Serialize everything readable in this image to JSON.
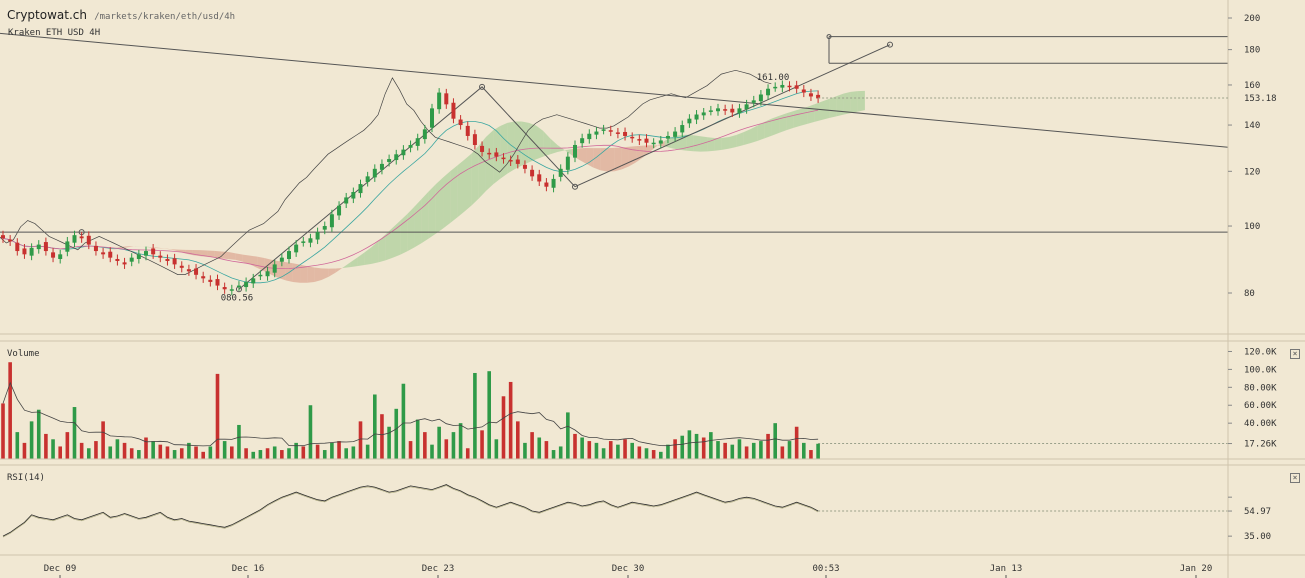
{
  "header": {
    "site": "Cryptowat.ch",
    "path": "/markets/kraken/eth/usd/4h",
    "market": "Kraken ETH USD 4H"
  },
  "panes": {
    "volume_label": "Volume",
    "rsi_label": "RSI(14)"
  },
  "colors": {
    "background": "#f1e8d3",
    "up": "#2f9a48",
    "down": "#c8312f",
    "cloud_up": "#9ec98f",
    "cloud_down": "#d99a85",
    "line": "#444444"
  },
  "icons": {
    "close": "close-icon"
  },
  "chart_data": [
    {
      "type": "candlestick",
      "title": "Kraken ETH USD 4H",
      "y_scale": "log",
      "ylim": [
        70,
        210
      ],
      "y_ticks": [
        "200",
        "180",
        "160",
        "140",
        "120",
        "100",
        "80"
      ],
      "last_price": "153.18",
      "annotations": [
        "161.00",
        "080.56"
      ],
      "x_ticks": [
        "Dec 09",
        "Dec 16",
        "Dec 23",
        "Dec 30",
        "00:53",
        "Jan 13",
        "Jan 20"
      ],
      "horizontal_levels": [
        98
      ],
      "close": [
        96,
        95,
        92,
        91,
        93,
        94,
        92,
        90,
        91,
        95,
        97,
        96,
        94,
        92,
        91,
        90,
        89,
        88,
        90,
        91,
        92,
        91,
        90,
        89,
        88,
        87,
        86,
        85,
        84,
        83,
        82,
        81,
        81,
        82,
        83,
        84,
        85,
        86,
        88,
        90,
        92,
        94,
        95,
        96,
        98,
        100,
        104,
        107,
        110,
        112,
        115,
        118,
        121,
        123,
        125,
        127,
        129,
        131,
        134,
        138,
        148,
        156,
        150,
        143,
        140,
        135,
        131,
        128,
        127,
        126,
        125,
        124,
        123,
        121,
        118,
        116,
        114,
        117,
        121,
        126,
        131,
        134,
        136,
        137,
        138,
        137,
        136,
        135,
        134,
        133,
        132,
        132,
        133,
        135,
        137,
        140,
        143,
        145,
        146,
        147,
        148,
        147,
        146,
        148,
        150,
        152,
        155,
        158,
        159,
        160,
        159,
        158,
        156,
        154,
        153
      ]
    },
    {
      "type": "bar",
      "title": "Volume",
      "y_ticks": [
        "120.0K",
        "100.0K",
        "80.00K",
        "60.00K",
        "40.00K",
        "17.26K"
      ],
      "last_value": "17.26K",
      "values": [
        62,
        108,
        30,
        18,
        42,
        55,
        28,
        22,
        14,
        30,
        58,
        18,
        12,
        20,
        42,
        14,
        22,
        18,
        12,
        10,
        24,
        20,
        16,
        14,
        10,
        12,
        18,
        14,
        8,
        14,
        95,
        20,
        14,
        38,
        12,
        8,
        10,
        12,
        14,
        10,
        12,
        18,
        14,
        60,
        16,
        10,
        18,
        20,
        12,
        14,
        42,
        16,
        72,
        50,
        36,
        56,
        84,
        20,
        44,
        30,
        16,
        36,
        22,
        30,
        40,
        12,
        96,
        32,
        98,
        22,
        70,
        86,
        42,
        18,
        30,
        24,
        20,
        10,
        14,
        52,
        28,
        24,
        20,
        18,
        12,
        20,
        16,
        22,
        18,
        14,
        12,
        10,
        8,
        16,
        22,
        26,
        32,
        28,
        24,
        30,
        20,
        18,
        16,
        22,
        14,
        18,
        20,
        28,
        40,
        14,
        20,
        36,
        18,
        10,
        17
      ],
      "up": [
        false,
        false,
        true,
        false,
        true,
        true,
        false,
        true,
        false,
        false,
        true,
        false,
        true,
        false,
        false,
        true,
        true,
        false,
        false,
        true,
        false,
        true,
        false,
        false,
        true,
        false,
        true,
        false,
        false,
        true,
        false,
        true,
        false,
        true,
        false,
        true,
        true,
        false,
        true,
        false,
        true,
        true,
        false,
        true,
        false,
        true,
        true,
        false,
        true,
        true,
        false,
        true,
        true,
        false,
        true,
        true,
        true,
        false,
        true,
        false,
        true,
        true,
        false,
        true,
        true,
        false,
        true,
        false,
        true,
        true,
        false,
        false,
        false,
        true,
        false,
        true,
        false,
        true,
        true,
        true,
        false,
        true,
        false,
        true,
        true,
        false,
        true,
        false,
        true,
        false,
        true,
        false,
        true,
        true,
        false,
        true,
        true,
        true,
        false,
        true,
        true,
        false,
        true,
        true,
        false,
        true,
        true,
        false,
        true,
        false,
        true,
        false,
        true,
        false,
        true
      ]
    },
    {
      "type": "line",
      "title": "RSI(14)",
      "ylim": [
        20,
        90
      ],
      "y_ticks": [
        "54.97",
        "35.00"
      ],
      "last_value": "54.97",
      "values": [
        35,
        38,
        42,
        46,
        52,
        50,
        49,
        48,
        50,
        52,
        49,
        48,
        50,
        52,
        54,
        50,
        51,
        53,
        51,
        49,
        50,
        52,
        54,
        50,
        48,
        49,
        47,
        46,
        45,
        44,
        43,
        42,
        44,
        47,
        50,
        53,
        56,
        60,
        63,
        66,
        68,
        70,
        68,
        66,
        64,
        63,
        66,
        68,
        70,
        72,
        74,
        75,
        74,
        72,
        70,
        71,
        73,
        75,
        74,
        73,
        72,
        74,
        76,
        73,
        71,
        68,
        66,
        63,
        60,
        58,
        60,
        62,
        60,
        58,
        55,
        54,
        56,
        58,
        60,
        62,
        61,
        59,
        60,
        62,
        63,
        60,
        58,
        60,
        62,
        61,
        60,
        59,
        60,
        62,
        64,
        66,
        68,
        70,
        68,
        66,
        64,
        62,
        63,
        65,
        66,
        65,
        63,
        61,
        59,
        58,
        60,
        62,
        60,
        58,
        55
      ]
    }
  ]
}
